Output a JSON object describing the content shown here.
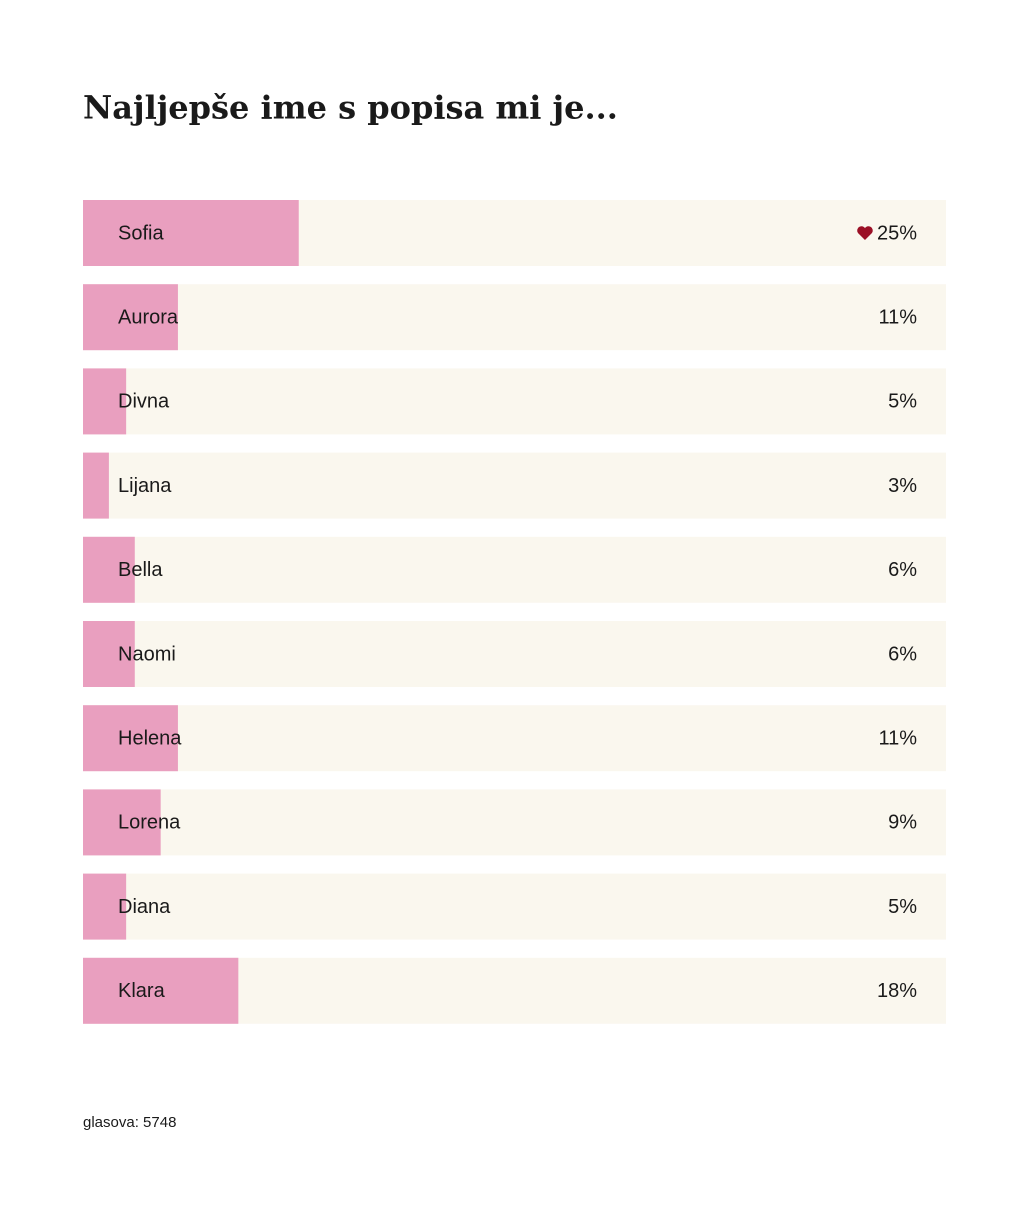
{
  "chart_data": {
    "type": "bar",
    "orientation": "horizontal",
    "title": "Najljepše ime s popisa mi je...",
    "categories": [
      "Sofia",
      "Aurora",
      "Divna",
      "Lijana",
      "Bella",
      "Naomi",
      "Helena",
      "Lorena",
      "Diana",
      "Klara"
    ],
    "values": [
      25,
      11,
      5,
      3,
      6,
      6,
      11,
      9,
      5,
      18
    ],
    "value_labels": [
      "25%",
      "11%",
      "5%",
      "3%",
      "6%",
      "6%",
      "11%",
      "9%",
      "5%",
      "18%"
    ],
    "xlim": [
      0,
      100
    ],
    "color": "#e99fbf",
    "track_color": "#faf7ee",
    "footer": "glasova: 5748"
  }
}
